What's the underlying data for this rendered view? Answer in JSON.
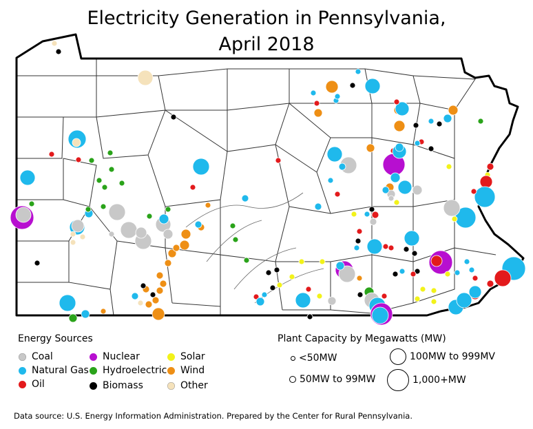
{
  "title_line1": "Electricity Generation in Pennsylvania,",
  "title_line2": "April 2018",
  "legend": {
    "sources_title": "Energy Sources",
    "sources": [
      {
        "key": "coal",
        "label": "Coal",
        "color": "#c8c8c8"
      },
      {
        "key": "natural_gas",
        "label": "Natural Gas",
        "color": "#1fb9ec"
      },
      {
        "key": "oil",
        "label": "Oil",
        "color": "#e31a1c"
      },
      {
        "key": "nuclear",
        "label": "Nuclear",
        "color": "#b70fd0"
      },
      {
        "key": "hydroelectric",
        "label": "Hydroelectric",
        "color": "#2aa31a"
      },
      {
        "key": "biomass",
        "label": "Biomass",
        "color": "#000000"
      },
      {
        "key": "solar",
        "label": "Solar",
        "color": "#f2f21a"
      },
      {
        "key": "wind",
        "label": "Wind",
        "color": "#ee8f15"
      },
      {
        "key": "other",
        "label": "Other",
        "color": "#f5e2bb"
      }
    ],
    "capacity_title": "Plant Capacity by Megawatts (MW)",
    "capacity": [
      {
        "label": "<50MW"
      },
      {
        "label": "50MW to 99MW"
      },
      {
        "label": "100MW to 999MV"
      },
      {
        "label": "1,000+MW"
      }
    ]
  },
  "source": "Data source: U.S. Energy Information Administration. Prepared by the Center for Rural Pennsylvania."
}
